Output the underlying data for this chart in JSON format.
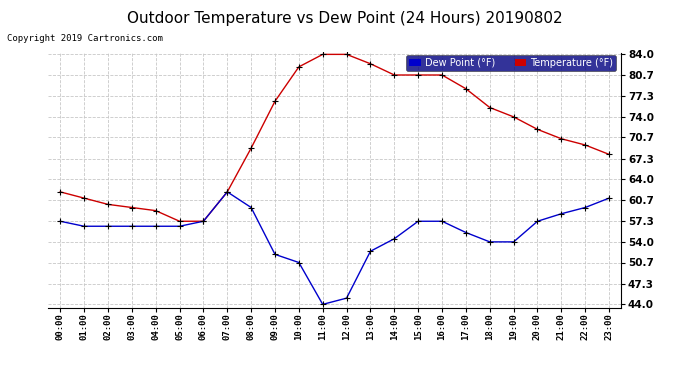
{
  "title": "Outdoor Temperature vs Dew Point (24 Hours) 20190802",
  "copyright": "Copyright 2019 Cartronics.com",
  "hours": [
    "00:00",
    "01:00",
    "02:00",
    "03:00",
    "04:00",
    "05:00",
    "06:00",
    "07:00",
    "08:00",
    "09:00",
    "10:00",
    "11:00",
    "12:00",
    "13:00",
    "14:00",
    "15:00",
    "16:00",
    "17:00",
    "18:00",
    "19:00",
    "20:00",
    "21:00",
    "22:00",
    "23:00"
  ],
  "temperature": [
    62.0,
    61.0,
    60.0,
    59.5,
    59.0,
    57.3,
    57.3,
    62.0,
    69.0,
    76.5,
    82.0,
    84.0,
    84.0,
    82.5,
    80.7,
    80.7,
    80.7,
    78.5,
    75.5,
    74.0,
    72.0,
    70.5,
    69.5,
    68.0
  ],
  "dew_point": [
    57.3,
    56.5,
    56.5,
    56.5,
    56.5,
    56.5,
    57.3,
    62.0,
    59.5,
    52.0,
    50.7,
    44.0,
    45.0,
    52.5,
    54.5,
    57.3,
    57.3,
    55.5,
    54.0,
    54.0,
    57.3,
    58.5,
    59.5,
    61.0
  ],
  "temp_color": "#cc0000",
  "dew_color": "#0000cc",
  "ylim_min": 44.0,
  "ylim_max": 84.0,
  "yticks": [
    44.0,
    47.3,
    50.7,
    54.0,
    57.3,
    60.7,
    64.0,
    67.3,
    70.7,
    74.0,
    77.3,
    80.7,
    84.0
  ],
  "background_color": "#ffffff",
  "plot_bg_color": "#ffffff",
  "grid_color": "#c8c8c8",
  "title_fontsize": 11,
  "legend_dew_color": "#0000cc",
  "legend_temp_color": "#cc0000",
  "legend_bg": "#000080",
  "legend_text_color": "#ffffff"
}
